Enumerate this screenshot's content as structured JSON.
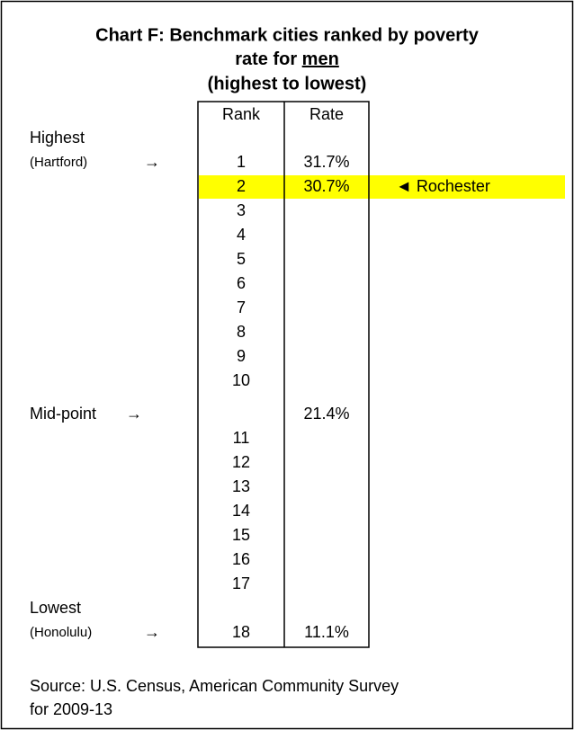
{
  "title": {
    "line1": "Chart F: Benchmark cities ranked by poverty",
    "line2": "rate for",
    "emphasis": "men",
    "line3": "(highest to lowest)"
  },
  "table": {
    "headers": [
      "Rank",
      "Rate"
    ],
    "rows": [
      {
        "label": "Highest"
      },
      {
        "label": "(Hartford)",
        "arrow": "→",
        "rank": "1",
        "rate": "31.7%"
      },
      {
        "rank": "2",
        "rate": "30.7%",
        "highlight": true,
        "note": "◄ Rochester"
      },
      {
        "rank": "3"
      },
      {
        "rank": "4"
      },
      {
        "rank": "5"
      },
      {
        "rank": "6"
      },
      {
        "rank": "7"
      },
      {
        "rank": "8"
      },
      {
        "rank": "9"
      },
      {
        "rank": "10"
      },
      {
        "label": "Mid-point",
        "arrow": "→",
        "rate": "21.4%"
      },
      {
        "rank": "11"
      },
      {
        "rank": "12"
      },
      {
        "rank": "13"
      },
      {
        "rank": "14"
      },
      {
        "rank": "15"
      },
      {
        "rank": "16"
      },
      {
        "rank": "17"
      },
      {
        "label": "Lowest"
      },
      {
        "label": "(Honolulu)",
        "arrow": "→",
        "rank": "18",
        "rate": "11.1%"
      }
    ]
  },
  "source": {
    "line1": "Source: U.S. Census, American Community Survey",
    "line2": "for 2009-13"
  }
}
